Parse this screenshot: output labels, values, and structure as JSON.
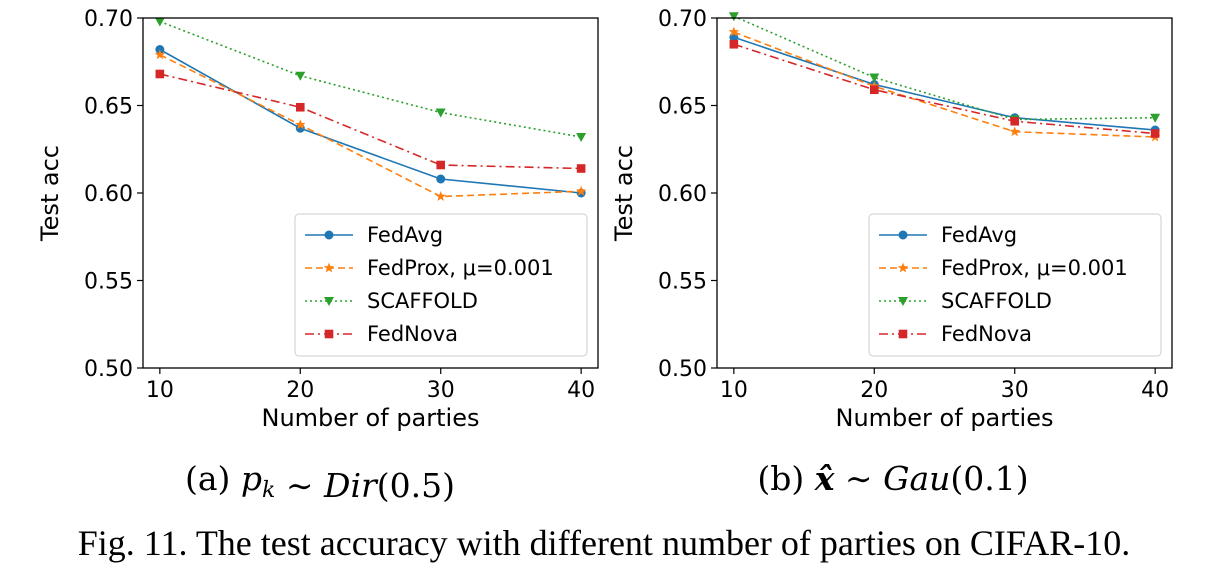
{
  "colors": {
    "FedAvg": "#1f77b4",
    "FedProx": "#ff7f0e",
    "SCAFFOLD": "#2ca02c",
    "FedNova": "#d62728"
  },
  "figure_caption": "Fig. 11.  The test accuracy with different number of parties on CIFAR-10.",
  "chart_data": [
    {
      "type": "line",
      "caption": "(a) p_k ∼ Dir(0.5)",
      "caption_parts": {
        "label": "(a) ",
        "var": "p",
        "sub": "k",
        "op": " ∼ ",
        "fn": "Dir",
        "arg": "(0.5)"
      },
      "xlabel": "Number of parties",
      "ylabel": "Test acc",
      "x": [
        10,
        20,
        30,
        40
      ],
      "xticks": [
        "10",
        "20",
        "30",
        "40"
      ],
      "yticks": [
        "0.50",
        "0.55",
        "0.60",
        "0.65",
        "0.70"
      ],
      "ylim": [
        0.5,
        0.7
      ],
      "legend_position": "lower-right",
      "series": [
        {
          "name": "FedAvg",
          "marker": "circle",
          "style": "solid",
          "values": [
            0.682,
            0.637,
            0.608,
            0.6
          ]
        },
        {
          "name": "FedProx, μ=0.001",
          "marker": "star",
          "style": "dashed",
          "values": [
            0.679,
            0.639,
            0.598,
            0.601
          ]
        },
        {
          "name": "SCAFFOLD",
          "marker": "triangle-down",
          "style": "dotted",
          "values": [
            0.698,
            0.667,
            0.646,
            0.632
          ]
        },
        {
          "name": "FedNova",
          "marker": "square",
          "style": "dashdot",
          "values": [
            0.668,
            0.649,
            0.616,
            0.614
          ]
        }
      ]
    },
    {
      "type": "line",
      "caption": "(b) x̂ ∼ Gau(0.1)",
      "caption_parts": {
        "label": "(b) ",
        "var": "x̂",
        "sub": "",
        "op": " ∼ ",
        "fn": "Gau",
        "arg": "(0.1)"
      },
      "xlabel": "Number of parties",
      "ylabel": "Test acc",
      "x": [
        10,
        20,
        30,
        40
      ],
      "xticks": [
        "10",
        "20",
        "30",
        "40"
      ],
      "yticks": [
        "0.50",
        "0.55",
        "0.60",
        "0.65",
        "0.70"
      ],
      "ylim": [
        0.5,
        0.7
      ],
      "legend_position": "lower-right",
      "series": [
        {
          "name": "FedAvg",
          "marker": "circle",
          "style": "solid",
          "values": [
            0.689,
            0.662,
            0.643,
            0.636
          ]
        },
        {
          "name": "FedProx, μ=0.001",
          "marker": "star",
          "style": "dashed",
          "values": [
            0.692,
            0.661,
            0.635,
            0.632
          ]
        },
        {
          "name": "SCAFFOLD",
          "marker": "triangle-down",
          "style": "dotted",
          "values": [
            0.701,
            0.666,
            0.642,
            0.643
          ]
        },
        {
          "name": "FedNova",
          "marker": "square",
          "style": "dashdot",
          "values": [
            0.685,
            0.659,
            0.641,
            0.634
          ]
        }
      ]
    }
  ]
}
